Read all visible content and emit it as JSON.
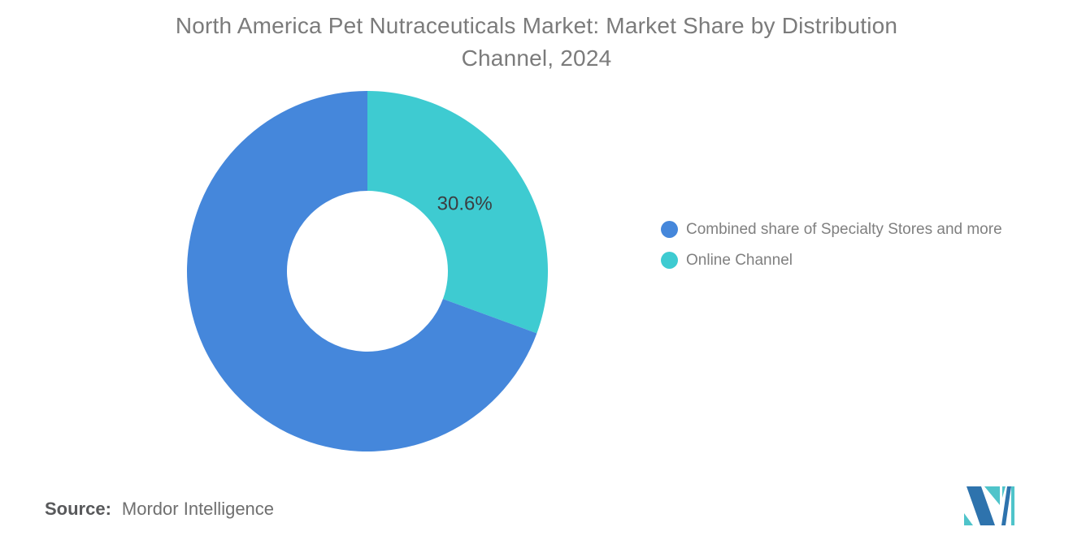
{
  "title": {
    "line1": "North America Pet Nutraceuticals Market: Market Share by Distribution",
    "line2": "Channel, 2024"
  },
  "chart_data": {
    "type": "pie",
    "donut": true,
    "title": "North America Pet Nutraceuticals Market: Market Share by Distribution Channel, 2024",
    "start_angle": "top",
    "direction": "clockwise",
    "legend_position": "right",
    "slices": [
      {
        "name": "Online Channel",
        "value": 30.6,
        "color": "#3ECBD1",
        "display_label": "30.6%"
      },
      {
        "name": "Combined share of Specialty Stores and more",
        "value": 69.4,
        "color": "#4587DB",
        "display_label": null
      }
    ],
    "value_label_color": "#3b3e41"
  },
  "legend": {
    "items": [
      {
        "label": "Combined share of Specialty Stores and more",
        "color": "#4587DB"
      },
      {
        "label": "Online Channel",
        "color": "#3ECBD1"
      }
    ]
  },
  "source": {
    "label": "Source:",
    "value": "Mordor Intelligence"
  },
  "logo": {
    "name": "mordor-intelligence-logo",
    "colors": {
      "blue": "#2E73AD",
      "teal": "#4FC4CA"
    }
  }
}
